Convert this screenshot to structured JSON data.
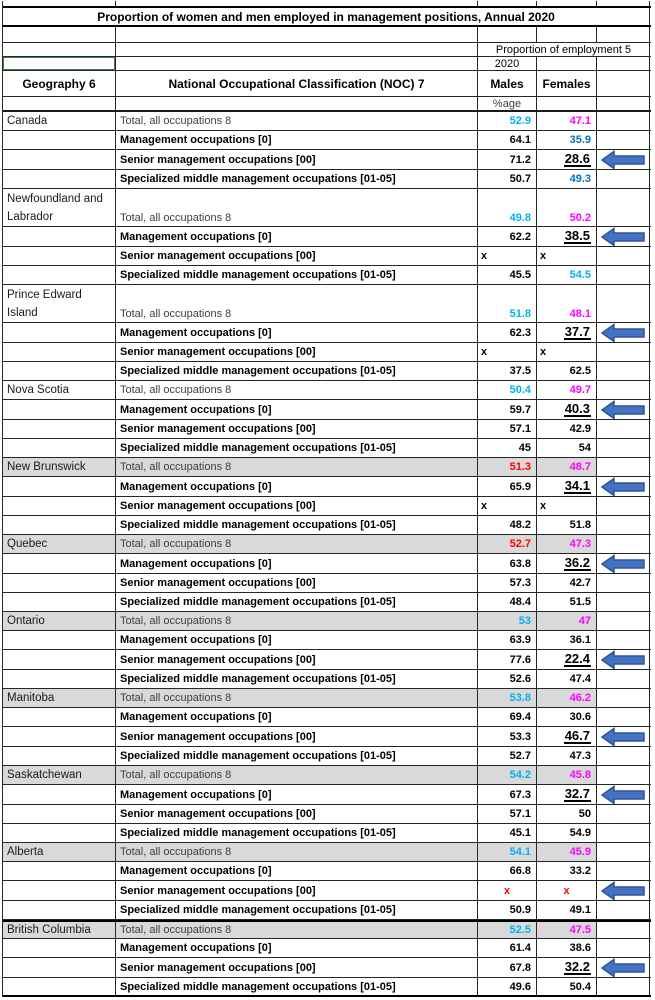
{
  "title": "Proportion of women and men employed in management positions, Annual 2020",
  "header": {
    "proportion_label": "Proportion of employment 5",
    "year": "2020",
    "geography": "Geography 6",
    "noc": "National Occupational Classification (NOC) 7",
    "males": "Males",
    "females": "Females",
    "unit": "%age"
  },
  "colors": {
    "black": "#000000",
    "cyan": "#00B0F0",
    "magenta": "#FF00FF",
    "blue": "#0070C0",
    "red": "#FF0000",
    "row_gray": "#D9D9D9",
    "grid": "#262626",
    "arrow_fill": "#4472C4",
    "arrow_stroke": "#2E5597",
    "selection_green": "#3f7e41",
    "highlight_red": "#FF0000"
  },
  "rows": [
    {
      "geo": "Canada",
      "noc": "Total, all occupations 8",
      "m": "52.9",
      "f": "47.1",
      "mc": "cyan",
      "fc": "magenta"
    },
    {
      "noc": "Management occupations  [0]",
      "m": "64.1",
      "f": "35.9",
      "fc": "blue",
      "bold": true
    },
    {
      "noc": "Senior management occupations  [00]",
      "m": "71.2",
      "f": "28.6",
      "bold": true,
      "arrow": true,
      "hlF": true
    },
    {
      "noc": "Specialized middle management occupations  [01-05]",
      "m": "50.7",
      "f": "49.3",
      "fc": "blue",
      "bold": true
    },
    {
      "geo": "Newfoundland and\nLabrador",
      "noc": "Total, all occupations 8",
      "m": "49.8",
      "f": "50.2",
      "mc": "cyan",
      "fc": "magenta",
      "tall": true
    },
    {
      "noc": "Management occupations  [0]",
      "m": "62.2",
      "f": "38.5",
      "bold": true,
      "arrow": true,
      "hlF": true
    },
    {
      "noc": "Senior management occupations  [00]",
      "m": "x",
      "f": "x",
      "bold": true,
      "mAlign": "left",
      "fAlign": "left"
    },
    {
      "noc": "Specialized middle management occupations  [01-05]",
      "m": "45.5",
      "f": "54.5",
      "fc": "cyan",
      "bold": true
    },
    {
      "geo": "Prince Edward\nIsland",
      "noc": "Total, all occupations 8",
      "m": "51.8",
      "f": "48.1",
      "mc": "cyan",
      "fc": "magenta",
      "tall": true
    },
    {
      "noc": "Management occupations  [0]",
      "m": "62.3",
      "f": "37.7",
      "bold": true,
      "arrow": true,
      "hlF": true
    },
    {
      "noc": "Senior management occupations  [00]",
      "m": "x",
      "f": "x",
      "bold": true,
      "mAlign": "left",
      "fAlign": "left"
    },
    {
      "noc": "Specialized middle management occupations  [01-05]",
      "m": "37.5",
      "f": "62.5",
      "bold": true
    },
    {
      "geo": "Nova Scotia",
      "noc": "Total, all occupations 8",
      "m": "50.4",
      "f": "49.7",
      "mc": "cyan",
      "fc": "magenta"
    },
    {
      "noc": "Management occupations  [0]",
      "m": "59.7",
      "f": "40.3",
      "bold": true,
      "arrow": true,
      "hlF": true
    },
    {
      "noc": "Senior management occupations  [00]",
      "m": "57.1",
      "f": "42.9",
      "bold": true
    },
    {
      "noc": "Specialized middle management occupations  [01-05]",
      "m": "45",
      "f": "54",
      "bold": true
    },
    {
      "geo": "New Brunswick",
      "noc": "Total, all occupations 8",
      "m": "51.3",
      "f": "48.7",
      "mc": "red",
      "fc": "magenta",
      "shade": true
    },
    {
      "noc": "Management occupations  [0]",
      "m": "65.9",
      "f": "34.1",
      "bold": true,
      "arrow": true,
      "hlF": true
    },
    {
      "noc": "Senior management occupations  [00]",
      "m": "x",
      "f": "x",
      "bold": true,
      "mAlign": "left",
      "fAlign": "left"
    },
    {
      "noc": "Specialized middle management occupations  [01-05]",
      "m": "48.2",
      "f": "51.8",
      "bold": true
    },
    {
      "geo": "Quebec",
      "noc": "Total, all occupations 8",
      "m": "52.7",
      "f": "47.3",
      "mc": "red",
      "fc": "magenta",
      "shade": true
    },
    {
      "noc": "Management occupations  [0]",
      "m": "63.8",
      "f": "36.2",
      "bold": true,
      "arrow": true,
      "hlF": true
    },
    {
      "noc": "Senior management occupations  [00]",
      "m": "57.3",
      "f": "42.7",
      "bold": true
    },
    {
      "noc": "Specialized middle management occupations  [01-05]",
      "m": "48.4",
      "f": "51.5",
      "bold": true
    },
    {
      "geo": "Ontario",
      "noc": "Total, all occupations 8",
      "m": "53",
      "f": "47",
      "mc": "cyan",
      "fc": "magenta",
      "shade": true
    },
    {
      "noc": "Management occupations  [0]",
      "m": "63.9",
      "f": "36.1",
      "bold": true
    },
    {
      "noc": "Senior management occupations  [00]",
      "m": "77.6",
      "f": "22.4",
      "bold": true,
      "arrow": true,
      "hlF": true
    },
    {
      "noc": "Specialized middle management occupations  [01-05]",
      "m": "52.6",
      "f": "47.4",
      "bold": true
    },
    {
      "geo": "Manitoba",
      "noc": "Total, all occupations 8",
      "m": "53.8",
      "f": "46.2",
      "mc": "cyan",
      "fc": "magenta",
      "shade": true
    },
    {
      "noc": "Management occupations  [0]",
      "m": "69.4",
      "f": "30.6",
      "bold": true
    },
    {
      "noc": "Senior management occupations  [00]",
      "m": "53.3",
      "f": "46.7",
      "bold": true,
      "arrow": true,
      "hlF": true
    },
    {
      "noc": "Specialized middle management occupations  [01-05]",
      "m": "52.7",
      "f": "47.3",
      "bold": true
    },
    {
      "geo": "Saskatchewan",
      "noc": "Total, all occupations 8",
      "m": "54.2",
      "f": "45.8",
      "mc": "cyan",
      "fc": "magenta",
      "shade": true
    },
    {
      "noc": "Management occupations  [0]",
      "m": "67.3",
      "f": "32.7",
      "bold": true,
      "arrow": true,
      "hlF": true
    },
    {
      "noc": "Senior management occupations  [00]",
      "m": "57.1",
      "f": "50",
      "bold": true
    },
    {
      "noc": "Specialized middle management occupations  [01-05]",
      "m": "45.1",
      "f": "54.9",
      "bold": true
    },
    {
      "geo": "Alberta",
      "noc": "Total, all occupations 8",
      "m": "54.1",
      "f": "45.9",
      "mc": "cyan",
      "fc": "magenta",
      "shade": true
    },
    {
      "noc": "Management occupations  [0]",
      "m": "66.8",
      "f": "33.2",
      "bold": true
    },
    {
      "noc": "Senior management occupations  [00]",
      "m": "x",
      "f": "x",
      "mc": "red",
      "fc": "red",
      "bold": true,
      "arrow": true,
      "mAlign": "center",
      "fAlign": "center"
    },
    {
      "noc": "Specialized middle management occupations  [01-05]",
      "m": "50.9",
      "f": "49.1",
      "bold": true
    },
    {
      "geo": "British Columbia",
      "noc": "Total, all occupations 8",
      "m": "52.5",
      "f": "47.5",
      "mc": "cyan",
      "fc": "magenta",
      "shade": true,
      "thickTop": true
    },
    {
      "noc": "Management occupations  [0]",
      "m": "61.4",
      "f": "38.6",
      "bold": true
    },
    {
      "noc": "Senior management occupations  [00]",
      "m": "67.8",
      "f": "32.2",
      "bold": true,
      "arrow": true,
      "hlF": true
    },
    {
      "noc": "Specialized middle management occupations  [01-05]",
      "m": "49.6",
      "f": "50.4",
      "bold": true
    }
  ]
}
